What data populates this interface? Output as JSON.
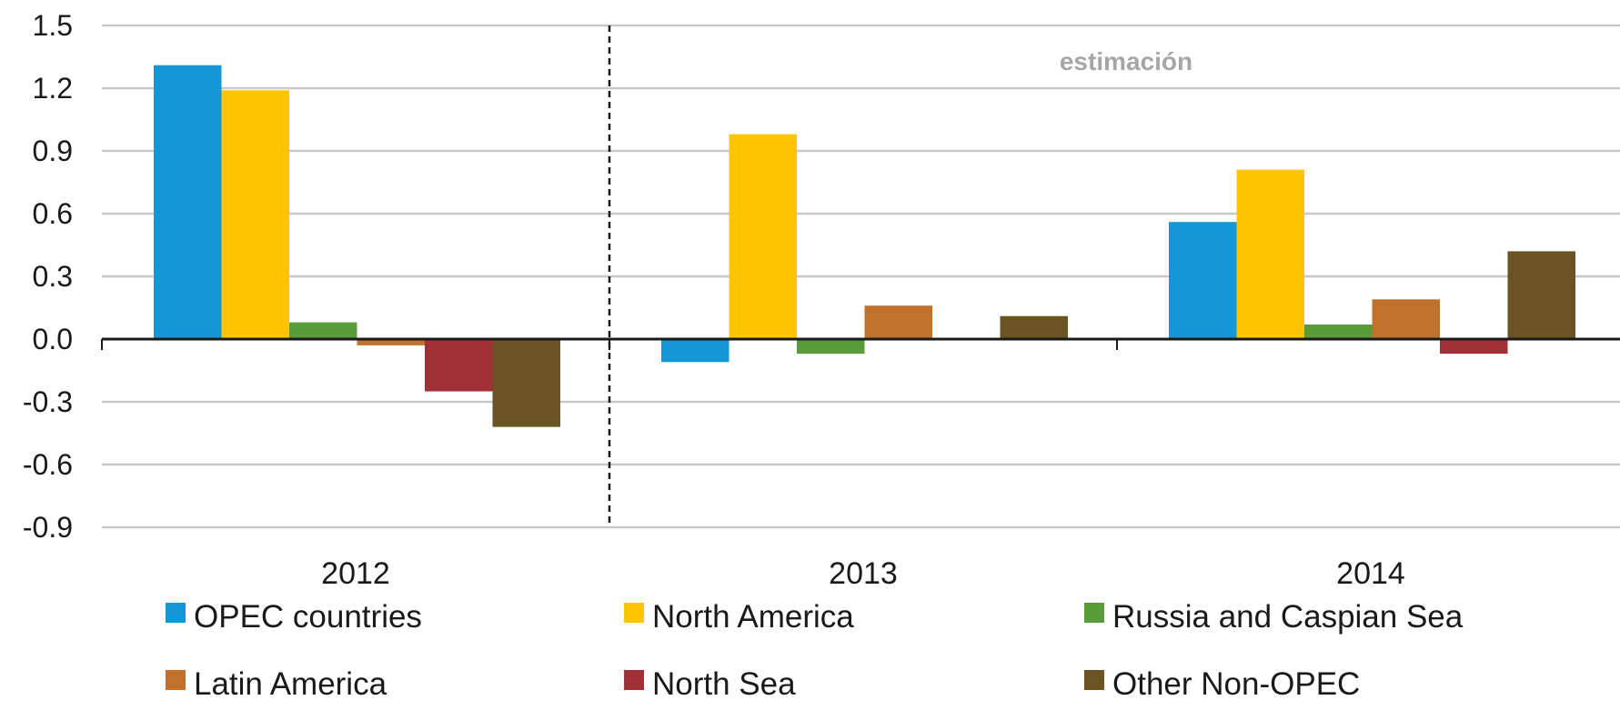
{
  "chart_data": {
    "type": "bar",
    "categories": [
      "2012",
      "2013",
      "2014"
    ],
    "series": [
      {
        "name": "OPEC countries",
        "color": "#1497d4",
        "values": [
          1.31,
          -0.11,
          0.56
        ]
      },
      {
        "name": "North America",
        "color": "#ffc600",
        "values": [
          1.19,
          0.98,
          0.81
        ]
      },
      {
        "name": "Russia and Caspian Sea",
        "color": "#5a9b3c",
        "values": [
          0.08,
          -0.07,
          0.07
        ]
      },
      {
        "name": "Latin America",
        "color": "#c0712c",
        "values": [
          -0.03,
          0.16,
          0.19
        ]
      },
      {
        "name": "North Sea",
        "color": "#a23039",
        "values": [
          -0.25,
          0.0,
          -0.07
        ]
      },
      {
        "name": "Other Non-OPEC",
        "color": "#6b5423",
        "values": [
          -0.42,
          0.11,
          0.42
        ]
      }
    ],
    "ylim": [
      -0.9,
      1.5
    ],
    "yticks": [
      "1.5",
      "1.2",
      "0.9",
      "0.6",
      "0.3",
      "0.0",
      "-0.3",
      "-0.6",
      "-0.9"
    ],
    "annotation": "estimación",
    "grid": true,
    "legend": "bottom"
  }
}
